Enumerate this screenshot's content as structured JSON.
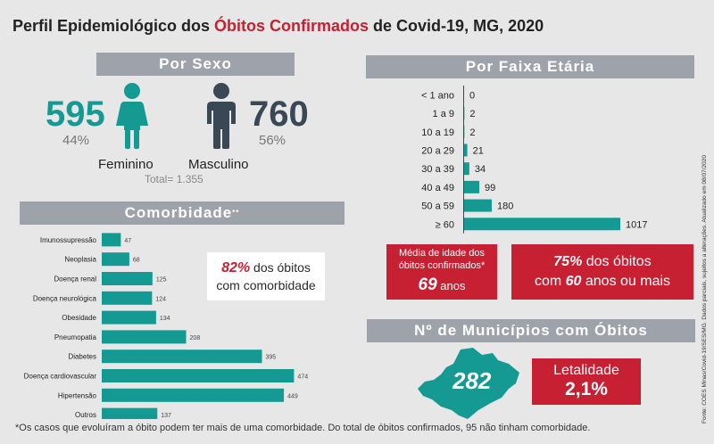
{
  "title": {
    "prefix": "Perfil Epidemiológico dos ",
    "accent": "Óbitos Confirmados",
    "suffix": " de Covid-19, MG, 2020"
  },
  "colors": {
    "teal": "#159a93",
    "dark": "#3a4754",
    "red": "#c62032",
    "header": "#9ea2aa"
  },
  "sexo": {
    "header": "Por Sexo",
    "feminino": {
      "count": "595",
      "pct": "44%",
      "label": "Feminino",
      "icon": "female-figure-icon"
    },
    "masculino": {
      "count": "760",
      "pct": "56%",
      "label": "Masculino",
      "icon": "male-figure-icon"
    },
    "total": "Total= 1.355"
  },
  "faixa": {
    "header": "Por Faixa Etária"
  },
  "comorbidade": {
    "header": "Comorbidade",
    "header_sup": "**",
    "highlight_pct": "82%",
    "highlight_text_1": " dos óbitos",
    "highlight_text_2": "com comorbidade"
  },
  "media": {
    "line1": "Média de idade dos",
    "line2": "óbitos confirmados*",
    "value": "69",
    "unit": " anos"
  },
  "idade60": {
    "pct": "75%",
    "text1": " dos óbitos",
    "pre2": "com ",
    "value": "60",
    "text2": " anos ou mais"
  },
  "municipios": {
    "header": "Nº de Municípios com Óbitos",
    "count": "282",
    "icon": "minas-gerais-map-icon"
  },
  "letalidade": {
    "label": "Letalidade",
    "value": "2,1%"
  },
  "footnote": "*Os casos que evoluíram a óbito podem ter mais de uma comorbidade. Do total de óbitos confirmados, 95 não tinham comorbidade.",
  "source": "Fonte: COES Minas/Covid-19/SES/MG. Dados parciais, sujeitos a alterações. Atualizado em 08/07/2020",
  "chart_data": [
    {
      "type": "bar",
      "orientation": "horizontal",
      "title": "Por Faixa Etária",
      "categories": [
        "< 1 ano",
        "1 a 9",
        "10 a 19",
        "20 a 29",
        "30 a 39",
        "40 a 49",
        "50 a 59",
        "≥ 60"
      ],
      "values": [
        0,
        2,
        2,
        21,
        34,
        99,
        180,
        1017
      ]
    },
    {
      "type": "bar",
      "orientation": "horizontal",
      "title": "Comorbidade",
      "categories": [
        "Imunossupressão",
        "Neoplasia",
        "Doença renal",
        "Doença neurológica",
        "Obesidade",
        "Pneumopatia",
        "Diabetes",
        "Doença cardiovascular",
        "Hipertensão",
        "Outros"
      ],
      "values": [
        47,
        68,
        125,
        124,
        134,
        208,
        395,
        474,
        449,
        137
      ]
    }
  ]
}
